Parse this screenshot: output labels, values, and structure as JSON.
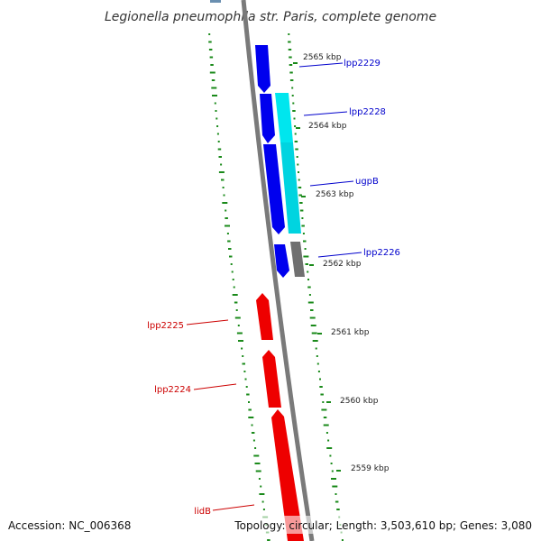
{
  "title": "Legionella pneumophila str. Paris, complete genome",
  "footer": {
    "accession": "Accession: NC_006368",
    "topology": "Topology: circular; Length: 3,503,610 bp; Genes: 3,080"
  },
  "colors": {
    "forward_gene": "#0000ee",
    "reverse_gene": "#ee0000",
    "rna_gene": "#00e5ee",
    "other_feature": "#707070",
    "backbone": "#808080",
    "gc_ticks": "#1a8a1a"
  },
  "kbp_ticks": [
    "2565 kbp",
    "2564 kbp",
    "2563 kbp",
    "2562 kbp",
    "2561 kbp",
    "2560 kbp",
    "2559 kbp"
  ],
  "genes": [
    {
      "name": "lpp2229",
      "strand": "forward"
    },
    {
      "name": "lpp2228",
      "strand": "forward"
    },
    {
      "name": "ugpB",
      "strand": "forward"
    },
    {
      "name": "lpp2226",
      "strand": "forward"
    },
    {
      "name": "lpp2225",
      "strand": "reverse"
    },
    {
      "name": "lpp2224",
      "strand": "reverse"
    },
    {
      "name": "lidB",
      "strand": "reverse"
    }
  ]
}
